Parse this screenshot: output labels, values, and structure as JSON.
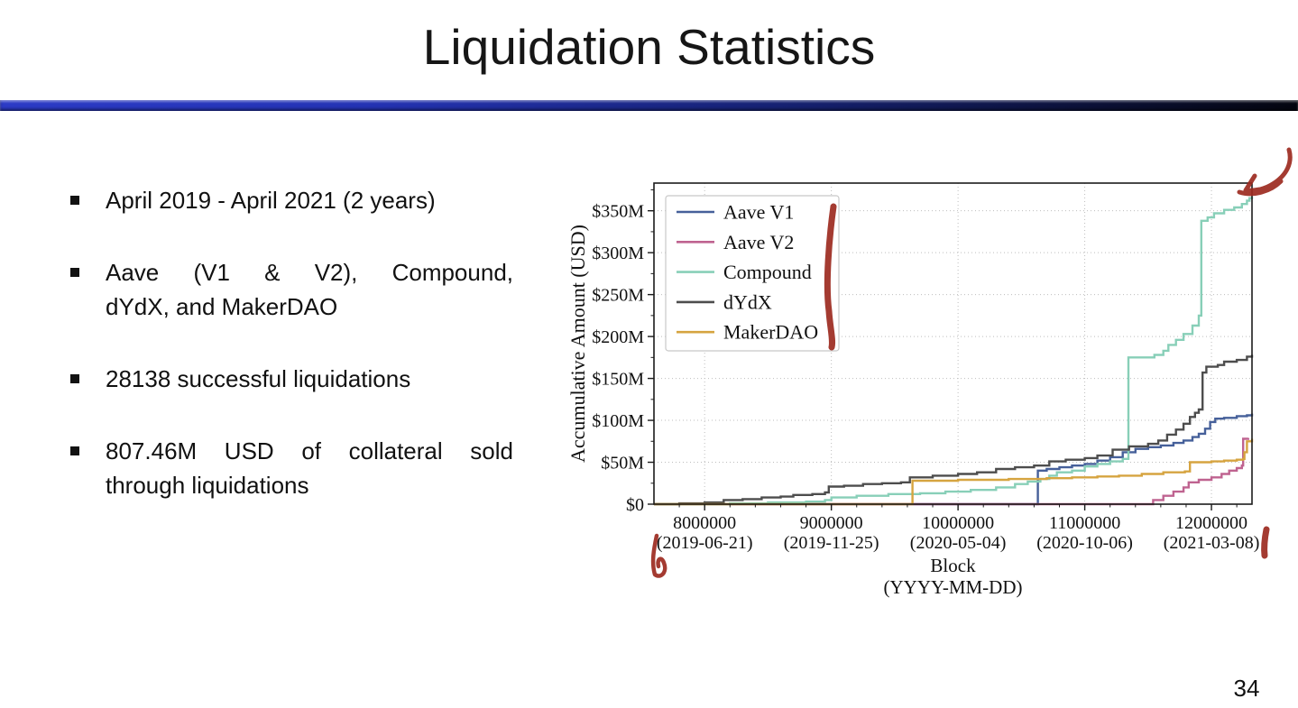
{
  "slide": {
    "title": "Liquidation Statistics",
    "page_number": "34",
    "divider_colors": {
      "left": "#2c3bc6",
      "right": "#04050f"
    },
    "bullets": [
      {
        "lines": [
          "April 2019 - April 2021 (2 years)"
        ],
        "justify": false
      },
      {
        "lines": [
          "Aave (V1 & V2), Compound,",
          "dYdX, and MakerDAO"
        ],
        "justify": true
      },
      {
        "lines": [
          "28138 successful liquidations"
        ],
        "justify": false
      },
      {
        "lines": [
          "807.46M USD of collateral sold",
          "through liquidations"
        ],
        "justify": true
      }
    ]
  },
  "chart_data": {
    "type": "line",
    "title": "",
    "ylabel": "Accumulative Amount (USD)",
    "xlabel_lines": [
      "Block",
      "(YYYY-MM-DD)"
    ],
    "x_unit": "block number (millions of blocks)",
    "y_unit": "USD millions",
    "xlim": [
      7.6,
      12.32
    ],
    "ylim": [
      0,
      383
    ],
    "grid": "dotted",
    "legend_position": "upper-left",
    "step_interpolation": true,
    "values_estimated_from_pixels": true,
    "x_ticks": [
      {
        "value": 8,
        "block_label": "8000000",
        "date_label": "(2019-06-21)"
      },
      {
        "value": 9,
        "block_label": "9000000",
        "date_label": "(2019-11-25)"
      },
      {
        "value": 10,
        "block_label": "10000000",
        "date_label": "(2020-05-04)"
      },
      {
        "value": 11,
        "block_label": "11000000",
        "date_label": "(2020-10-06)"
      },
      {
        "value": 12,
        "block_label": "12000000",
        "date_label": "(2021-03-08)"
      }
    ],
    "y_ticks": [
      {
        "value": 0,
        "label": "$0"
      },
      {
        "value": 50,
        "label": "$50M"
      },
      {
        "value": 100,
        "label": "$100M"
      },
      {
        "value": 150,
        "label": "$150M"
      },
      {
        "value": 200,
        "label": "$200M"
      },
      {
        "value": 250,
        "label": "$250M"
      },
      {
        "value": 300,
        "label": "$300M"
      },
      {
        "value": 350,
        "label": "$350M"
      }
    ],
    "series": [
      {
        "name": "Aave V1",
        "color": "#46609a",
        "final_value_musd": 108,
        "points": [
          [
            7.6,
            0
          ],
          [
            10.6,
            0
          ],
          [
            10.63,
            40
          ],
          [
            10.7,
            42
          ],
          [
            10.8,
            44
          ],
          [
            10.9,
            46
          ],
          [
            11.0,
            48
          ],
          [
            11.1,
            52
          ],
          [
            11.2,
            56
          ],
          [
            11.3,
            62
          ],
          [
            11.4,
            66
          ],
          [
            11.5,
            68
          ],
          [
            11.6,
            70
          ],
          [
            11.7,
            73
          ],
          [
            11.78,
            76
          ],
          [
            11.85,
            80
          ],
          [
            11.9,
            84
          ],
          [
            11.95,
            90
          ],
          [
            11.99,
            98
          ],
          [
            12.03,
            102
          ],
          [
            12.1,
            103
          ],
          [
            12.2,
            105
          ],
          [
            12.28,
            106
          ],
          [
            12.32,
            108
          ]
        ]
      },
      {
        "name": "Aave V2",
        "color": "#bf6390",
        "final_value_musd": 79,
        "points": [
          [
            7.6,
            0
          ],
          [
            11.48,
            0
          ],
          [
            11.54,
            5
          ],
          [
            11.62,
            10
          ],
          [
            11.7,
            15
          ],
          [
            11.78,
            20
          ],
          [
            11.82,
            26
          ],
          [
            11.9,
            29
          ],
          [
            12.0,
            32
          ],
          [
            12.08,
            36
          ],
          [
            12.14,
            40
          ],
          [
            12.2,
            43
          ],
          [
            12.24,
            46
          ],
          [
            12.25,
            78
          ],
          [
            12.29,
            79
          ]
        ]
      },
      {
        "name": "Compound",
        "color": "#88cfb8",
        "final_value_musd": 367,
        "points": [
          [
            7.6,
            0
          ],
          [
            8.2,
            1
          ],
          [
            8.5,
            2
          ],
          [
            8.8,
            3
          ],
          [
            8.95,
            5
          ],
          [
            9.0,
            8
          ],
          [
            9.2,
            10
          ],
          [
            9.45,
            12
          ],
          [
            9.7,
            13
          ],
          [
            9.9,
            15
          ],
          [
            10.1,
            17
          ],
          [
            10.3,
            20
          ],
          [
            10.45,
            24
          ],
          [
            10.55,
            27
          ],
          [
            10.65,
            30
          ],
          [
            10.72,
            34
          ],
          [
            10.78,
            38
          ],
          [
            10.9,
            40
          ],
          [
            11.0,
            45
          ],
          [
            11.1,
            48
          ],
          [
            11.2,
            51
          ],
          [
            11.3,
            54
          ],
          [
            11.345,
            175
          ],
          [
            11.55,
            178
          ],
          [
            11.62,
            183
          ],
          [
            11.66,
            190
          ],
          [
            11.72,
            196
          ],
          [
            11.78,
            203
          ],
          [
            11.85,
            213
          ],
          [
            11.9,
            225
          ],
          [
            11.92,
            338
          ],
          [
            11.97,
            342
          ],
          [
            12.02,
            347
          ],
          [
            12.1,
            351
          ],
          [
            12.18,
            354
          ],
          [
            12.24,
            358
          ],
          [
            12.28,
            362
          ],
          [
            12.3,
            365
          ],
          [
            12.32,
            367
          ]
        ]
      },
      {
        "name": "dYdX",
        "color": "#4d4d4d",
        "final_value_musd": 178,
        "points": [
          [
            7.6,
            0
          ],
          [
            7.8,
            1
          ],
          [
            8.0,
            2
          ],
          [
            8.15,
            5
          ],
          [
            8.3,
            6
          ],
          [
            8.45,
            8
          ],
          [
            8.6,
            9
          ],
          [
            8.7,
            11
          ],
          [
            8.85,
            12
          ],
          [
            8.95,
            14
          ],
          [
            8.98,
            21
          ],
          [
            9.1,
            22
          ],
          [
            9.25,
            24
          ],
          [
            9.4,
            25
          ],
          [
            9.55,
            26
          ],
          [
            9.62,
            32
          ],
          [
            9.8,
            34
          ],
          [
            10.0,
            36
          ],
          [
            10.15,
            38
          ],
          [
            10.3,
            42
          ],
          [
            10.45,
            44
          ],
          [
            10.6,
            46
          ],
          [
            10.72,
            51
          ],
          [
            10.85,
            53
          ],
          [
            11.0,
            55
          ],
          [
            11.1,
            58
          ],
          [
            11.22,
            65
          ],
          [
            11.35,
            69
          ],
          [
            11.5,
            72
          ],
          [
            11.58,
            76
          ],
          [
            11.65,
            83
          ],
          [
            11.72,
            89
          ],
          [
            11.78,
            96
          ],
          [
            11.83,
            104
          ],
          [
            11.87,
            109
          ],
          [
            11.9,
            113
          ],
          [
            11.93,
            157
          ],
          [
            11.96,
            164
          ],
          [
            12.05,
            166
          ],
          [
            12.1,
            170
          ],
          [
            12.2,
            172
          ],
          [
            12.28,
            176
          ],
          [
            12.32,
            178
          ]
        ]
      },
      {
        "name": "MakerDAO",
        "color": "#d6a440",
        "final_value_musd": 78,
        "points": [
          [
            7.6,
            0
          ],
          [
            9.62,
            0
          ],
          [
            9.64,
            28
          ],
          [
            10.0,
            29
          ],
          [
            10.4,
            30
          ],
          [
            10.7,
            31
          ],
          [
            10.9,
            32
          ],
          [
            11.1,
            33
          ],
          [
            11.27,
            34
          ],
          [
            11.45,
            36
          ],
          [
            11.62,
            38
          ],
          [
            11.79,
            39
          ],
          [
            11.83,
            50
          ],
          [
            12.0,
            51
          ],
          [
            12.1,
            52
          ],
          [
            12.2,
            53
          ],
          [
            12.25,
            54
          ],
          [
            12.26,
            62
          ],
          [
            12.28,
            75
          ],
          [
            12.32,
            78
          ]
        ]
      }
    ],
    "red_pen_annotations": [
      {
        "id": "legend-side-stroke",
        "desc": "hand-drawn vertical emphasis stroke along right edge of legend box"
      },
      {
        "id": "top-right-arrow",
        "desc": "hand-drawn curved arrow at top-right corner of plot pointing at Compound curve end"
      },
      {
        "id": "bottom-left-squiggle",
        "desc": "hand-drawn loop mark below first x-axis date label"
      },
      {
        "id": "bottom-right-tick",
        "desc": "hand-drawn short vertical stroke right of last x-axis date label"
      }
    ],
    "annotation_color": "#9c2a20"
  }
}
